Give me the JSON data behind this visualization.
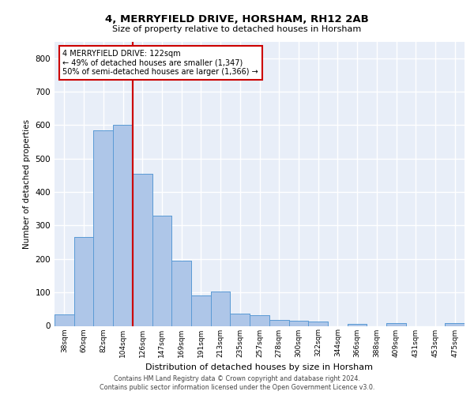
{
  "title1": "4, MERRYFIELD DRIVE, HORSHAM, RH12 2AB",
  "title2": "Size of property relative to detached houses in Horsham",
  "xlabel": "Distribution of detached houses by size in Horsham",
  "ylabel": "Number of detached properties",
  "bar_labels": [
    "38sqm",
    "60sqm",
    "82sqm",
    "104sqm",
    "126sqm",
    "147sqm",
    "169sqm",
    "191sqm",
    "213sqm",
    "235sqm",
    "257sqm",
    "278sqm",
    "300sqm",
    "322sqm",
    "344sqm",
    "366sqm",
    "388sqm",
    "409sqm",
    "431sqm",
    "453sqm",
    "475sqm"
  ],
  "bar_values": [
    35,
    265,
    585,
    600,
    455,
    330,
    195,
    90,
    103,
    36,
    32,
    17,
    16,
    12,
    0,
    6,
    0,
    8,
    0,
    0,
    8
  ],
  "bar_color": "#aec6e8",
  "bar_edge_color": "#5b9bd5",
  "background_color": "#e8eef8",
  "grid_color": "#ffffff",
  "vline_x": 4.0,
  "vline_color": "#cc0000",
  "annotation_text": "4 MERRYFIELD DRIVE: 122sqm\n← 49% of detached houses are smaller (1,347)\n50% of semi-detached houses are larger (1,366) →",
  "annotation_box_color": "#cc0000",
  "footer1": "Contains HM Land Registry data © Crown copyright and database right 2024.",
  "footer2": "Contains public sector information licensed under the Open Government Licence v3.0.",
  "ylim": [
    0,
    850
  ],
  "yticks": [
    0,
    100,
    200,
    300,
    400,
    500,
    600,
    700,
    800
  ]
}
